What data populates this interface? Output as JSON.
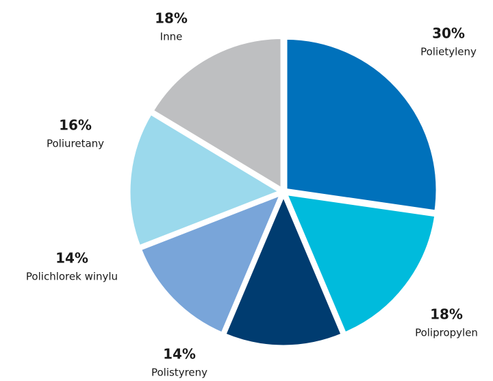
{
  "chart_data": {
    "type": "pie",
    "categories": [
      "Polietyleny",
      "Polipropylen",
      "Polistyreny",
      "Polichlorek winylu",
      "Poliuretany",
      "Inne"
    ],
    "values": [
      30,
      18,
      14,
      14,
      16,
      18
    ],
    "value_labels": [
      "30%",
      "18%",
      "14%",
      "14%",
      "16%",
      "18%"
    ],
    "colors": [
      "#0071bb",
      "#00bbdc",
      "#003c70",
      "#79a5d9",
      "#9bd9ec",
      "#bebfc1"
    ]
  }
}
